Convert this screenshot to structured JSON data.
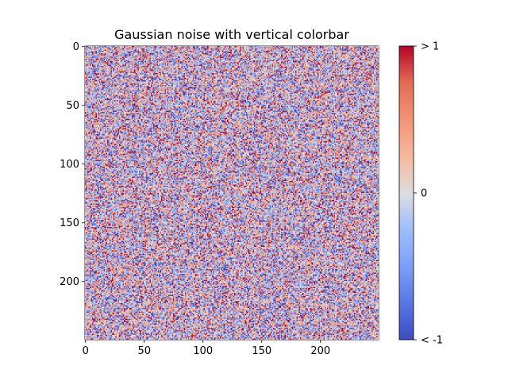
{
  "chart_data": {
    "type": "heatmap",
    "title": "Gaussian noise with vertical colorbar",
    "xlabel": "",
    "ylabel": "",
    "rows": 250,
    "cols": 250,
    "distribution": "gaussian",
    "colormap": "coolwarm",
    "xlim": [
      -0.5,
      249.5
    ],
    "ylim": [
      249.5,
      -0.5
    ],
    "x_ticks": [
      0,
      50,
      100,
      150,
      200
    ],
    "y_ticks": [
      0,
      50,
      100,
      150,
      200
    ],
    "colorbar": {
      "orientation": "vertical",
      "vmin": -1,
      "vmax": 1,
      "ticks": [
        {
          "value": 1,
          "label": "> 1"
        },
        {
          "value": 0,
          "label": "0"
        },
        {
          "value": -1,
          "label": "< -1"
        }
      ],
      "colors": {
        "low": "#3b4cc0",
        "mid": "#dddddd",
        "high": "#b40426"
      }
    }
  }
}
